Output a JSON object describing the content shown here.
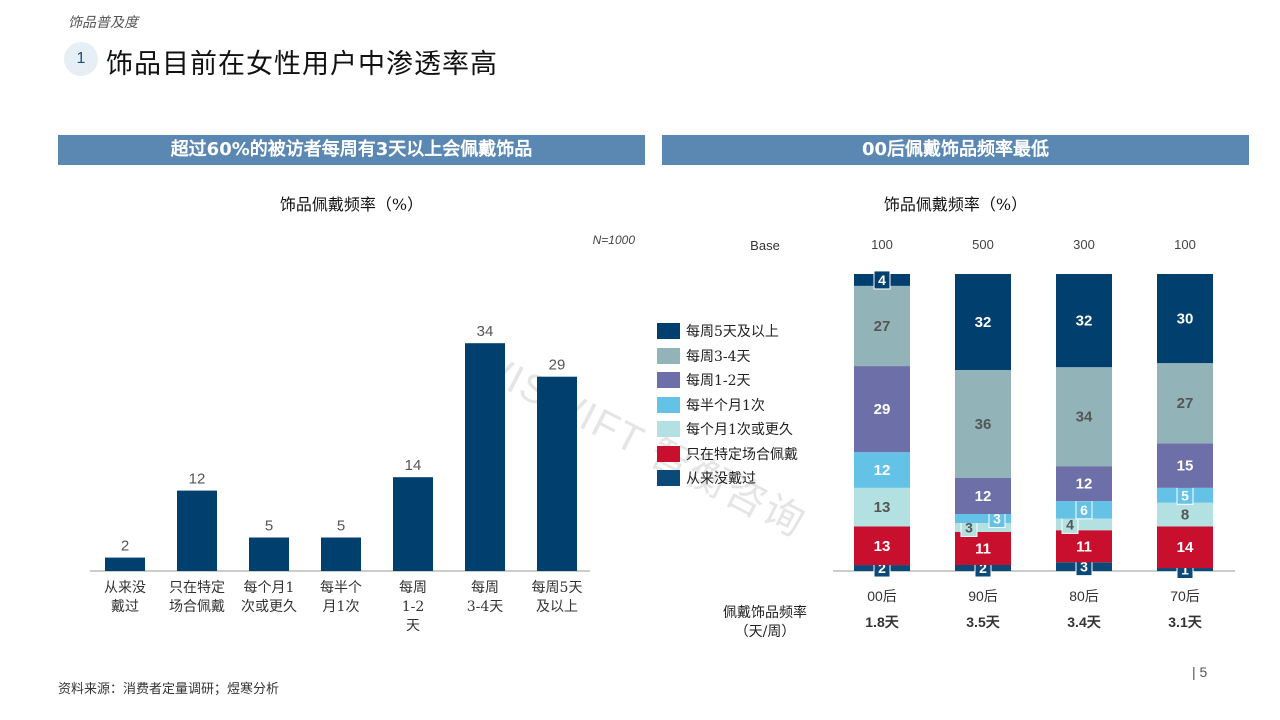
{
  "header": {
    "section_label": "饰品普及度",
    "badge": "1",
    "title": "饰品目前在女性用户中渗透率高"
  },
  "banners": {
    "left": "超过60%的被访者每周有3天以上会佩戴饰品",
    "right": "00后佩戴饰品频率最低"
  },
  "watermark": "WISWIFT 智衡咨询",
  "frequency": {
    "label_line1": "佩戴饰品频率",
    "label_line2": "（天/周）",
    "values": [
      "1.8天",
      "3.5天",
      "3.4天",
      "3.1天"
    ]
  },
  "footer": {
    "source": "资料来源：消费者定量调研；煜寒分析",
    "page_number": "| 5"
  },
  "colors": {
    "banner": "#5b88b3",
    "bar_left": "#003f6e"
  },
  "chart_data": [
    {
      "type": "bar",
      "title": "饰品佩戴频率（%）",
      "note": "N=1000",
      "categories": [
        [
          "从来没",
          "戴过"
        ],
        [
          "只在特定",
          "场合佩戴"
        ],
        [
          "每个月1",
          "次或更久"
        ],
        [
          "每半个",
          "月1次"
        ],
        [
          "每周",
          "1-2",
          "天"
        ],
        [
          "每周",
          "3-4天"
        ],
        [
          "每周5天",
          "及以上"
        ]
      ],
      "values": [
        2,
        12,
        5,
        5,
        14,
        34,
        29
      ],
      "color": "#003f6e"
    },
    {
      "type": "bar",
      "stacked": true,
      "percent": true,
      "title": "饰品佩戴频率（%）",
      "base_label": "Base",
      "bases": [
        "100",
        "500",
        "300",
        "100"
      ],
      "categories": [
        "00后",
        "90后",
        "80后",
        "70后"
      ],
      "series": [
        {
          "name": "从来没戴过",
          "color": "#0b4a78",
          "values": [
            2,
            2,
            3,
            1
          ]
        },
        {
          "name": "只在特定场合佩戴",
          "color": "#c8102e",
          "values": [
            13,
            11,
            11,
            14
          ]
        },
        {
          "name": "每个月1次或更久",
          "color": "#b3e0e0",
          "values": [
            13,
            3,
            4,
            8
          ]
        },
        {
          "name": "每半个月1次",
          "color": "#64c2e6",
          "values": [
            12,
            3,
            6,
            5
          ]
        },
        {
          "name": "每周1-2天",
          "color": "#6c6fa8",
          "values": [
            29,
            12,
            12,
            15
          ]
        },
        {
          "name": "每周3-4天",
          "color": "#92b4b8",
          "values": [
            27,
            36,
            34,
            27
          ]
        },
        {
          "name": "每周5天及以上",
          "color": "#003f6e",
          "values": [
            4,
            32,
            32,
            30
          ]
        }
      ],
      "legend_order": [
        "每周5天及以上",
        "每周3-4天",
        "每周1-2天",
        "每半个月1次",
        "每个月1次或更久",
        "只在特定场合佩戴",
        "从来没戴过"
      ]
    }
  ]
}
